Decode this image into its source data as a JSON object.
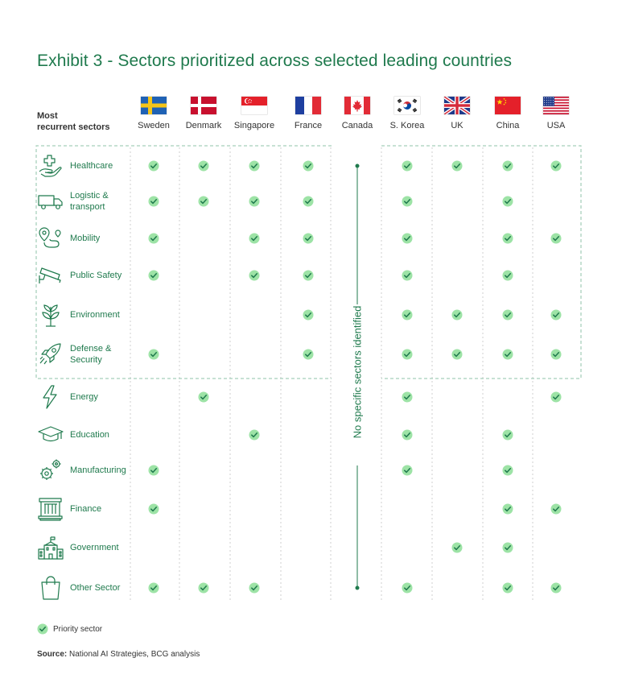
{
  "title": "Exhibit 3 - Sectors prioritized across selected leading countries",
  "header_label": [
    "Most",
    "recurrent sectors"
  ],
  "colors": {
    "accent_green": "#1f7a4d",
    "check_fill": "#9de3a6",
    "check_mark": "#1f7a4d",
    "dashed_border": "#8fc3a8",
    "column_divider": "#cfcfcf"
  },
  "chart_data": {
    "type": "table",
    "title": "Exhibit 3 - Sectors prioritized across selected leading countries",
    "row_header": "Most recurrent sectors",
    "countries": [
      {
        "name": "Sweden",
        "flag": "sweden-flag"
      },
      {
        "name": "Denmark",
        "flag": "denmark-flag"
      },
      {
        "name": "Singapore",
        "flag": "singapore-flag"
      },
      {
        "name": "France",
        "flag": "france-flag"
      },
      {
        "name": "Canada",
        "flag": "canada-flag"
      },
      {
        "name": "S. Korea",
        "flag": "south-korea-flag"
      },
      {
        "name": "UK",
        "flag": "uk-flag"
      },
      {
        "name": "China",
        "flag": "china-flag"
      },
      {
        "name": "USA",
        "flag": "usa-flag"
      }
    ],
    "sectors": [
      {
        "lines": [
          "Healthcare"
        ],
        "icon": "healthcare-icon",
        "priority": [
          1,
          1,
          1,
          1,
          0,
          1,
          1,
          1,
          1
        ]
      },
      {
        "lines": [
          "Logistic &",
          "transport"
        ],
        "icon": "truck-icon",
        "priority": [
          1,
          1,
          1,
          1,
          0,
          1,
          0,
          1,
          0
        ]
      },
      {
        "lines": [
          "Mobility"
        ],
        "icon": "route-icon",
        "priority": [
          1,
          0,
          1,
          1,
          0,
          1,
          0,
          1,
          1
        ]
      },
      {
        "lines": [
          "Public Safety"
        ],
        "icon": "cctv-camera-icon",
        "priority": [
          1,
          0,
          1,
          1,
          0,
          1,
          0,
          1,
          0
        ]
      },
      {
        "lines": [
          "Environment"
        ],
        "icon": "plant-icon",
        "priority": [
          0,
          0,
          0,
          1,
          0,
          1,
          1,
          1,
          1
        ]
      },
      {
        "lines": [
          "Defense &",
          "Security"
        ],
        "icon": "rocket-icon",
        "priority": [
          1,
          0,
          0,
          1,
          0,
          1,
          1,
          1,
          1
        ]
      },
      {
        "lines": [
          "Energy"
        ],
        "icon": "lightning-icon",
        "priority": [
          0,
          1,
          0,
          0,
          0,
          1,
          0,
          0,
          1
        ]
      },
      {
        "lines": [
          "Education"
        ],
        "icon": "graduation-cap-icon",
        "priority": [
          0,
          0,
          1,
          0,
          0,
          1,
          0,
          1,
          0
        ]
      },
      {
        "lines": [
          "Manufacturing"
        ],
        "icon": "gears-icon",
        "priority": [
          1,
          0,
          0,
          0,
          0,
          1,
          0,
          1,
          0
        ]
      },
      {
        "lines": [
          "Finance"
        ],
        "icon": "bank-icon",
        "priority": [
          1,
          0,
          0,
          0,
          0,
          0,
          0,
          1,
          1
        ]
      },
      {
        "lines": [
          "Government"
        ],
        "icon": "government-building-icon",
        "priority": [
          0,
          0,
          0,
          0,
          0,
          0,
          1,
          1,
          0
        ]
      },
      {
        "lines": [
          "Other Sector"
        ],
        "icon": "shopping-bag-icon",
        "priority": [
          1,
          1,
          1,
          0,
          0,
          1,
          0,
          1,
          1
        ]
      }
    ],
    "most_recurrent_group_size": 6,
    "column_annotation": {
      "country": "Canada",
      "text": "No specific sectors identified"
    },
    "legend": {
      "symbol": "check-icon",
      "label": "Priority sector"
    }
  },
  "source": {
    "label": "Source:",
    "text": "National AI Strategies, BCG analysis"
  }
}
